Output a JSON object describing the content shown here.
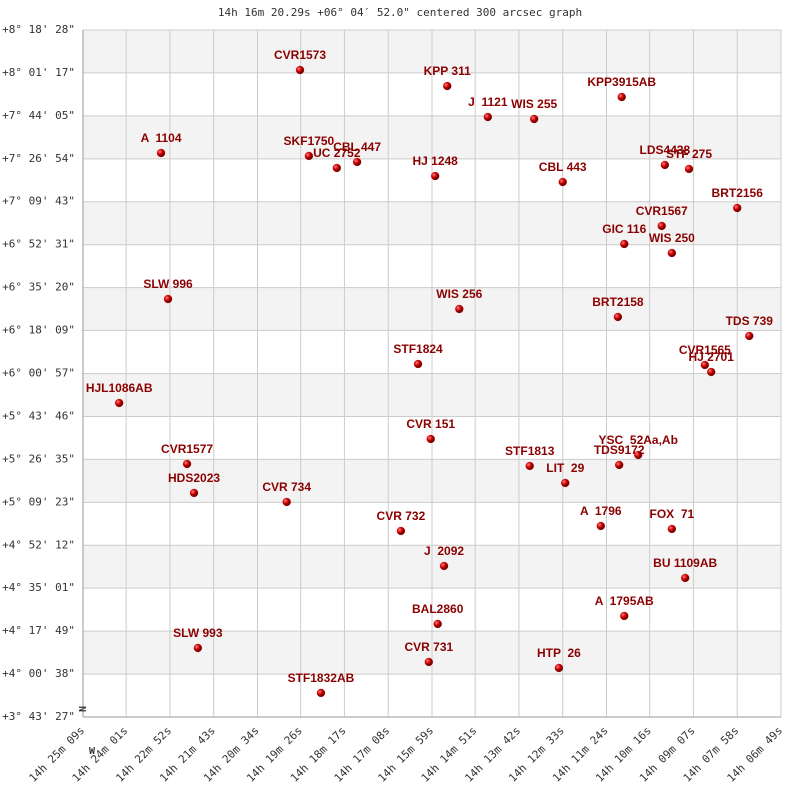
{
  "chart_data": {
    "type": "scatter",
    "title": "14h 16m 20.29s +06° 04′ 52.0\" centered 300 arcsec graph",
    "orientation_labels": [
      "N",
      "W"
    ],
    "point_labels": [
      "CVR1573",
      "KPP 311",
      "KPP3915AB",
      "J  1121",
      "WIS 255",
      "A  1104",
      "SKF1750",
      "UC 2752",
      "CBL 447",
      "HJ 1248",
      "CBL 443",
      "LDS4438",
      "STF 275",
      "BRT2156",
      "CVR1567",
      "GIC 116",
      "WIS 250",
      "SLW 996",
      "WIS 256",
      "BRT2158",
      "TDS 739",
      "STF1824",
      "CVR1565",
      "HJ 2701",
      "HJL1086AB",
      "CVR 151",
      "CVR1577",
      "STF1813",
      "YSC  52Aa,Ab",
      "TDS9172",
      "LIT  29",
      "HDS2023",
      "CVR 734",
      "A  1796",
      "FOX  71",
      "CVR 732",
      "J  2092",
      "BU 1109AB",
      "A  1795AB",
      "BAL2860",
      "SLW 993",
      "CVR 731",
      "HTP  26",
      "STF1832AB"
    ],
    "x": [
      51567,
      51335,
      51060,
      51271,
      51198,
      51786,
      51553,
      51509,
      51477,
      51354,
      51153,
      50992,
      50954,
      50878,
      50997,
      51056,
      50981,
      51775,
      51316,
      51066,
      50859,
      51381,
      50929,
      50919,
      51852,
      51361,
      51745,
      51205,
      51034,
      51064,
      51149,
      51734,
      51588,
      51093,
      50981,
      51408,
      51340,
      50960,
      51056,
      51350,
      51728,
      51364,
      51159,
      51534
    ],
    "values": [
      28947,
      28563,
      28299,
      27818,
      27770,
      26954,
      26882,
      26594,
      26738,
      26401,
      26257,
      26666,
      26570,
      25633,
      25201,
      24768,
      24552,
      23447,
      23207,
      23015,
      22559,
      21886,
      21862,
      21694,
      20950,
      20085,
      19485,
      19437,
      19701,
      19461,
      19028,
      18788,
      18572,
      17996,
      17924,
      17875,
      17035,
      16747,
      15834,
      15642,
      15065,
      14729,
      14585,
      13985
    ],
    "color": "#cc0000",
    "label_color": "#8b0000",
    "xlim": [
      51909,
      50809
    ],
    "xticks": [
      {
        "value": 51909,
        "label": "14h 25m 09s"
      },
      {
        "value": 51841,
        "label": "14h 24m 01s"
      },
      {
        "value": 51772,
        "label": "14h 22m 52s"
      },
      {
        "value": 51703,
        "label": "14h 21m 43s"
      },
      {
        "value": 51634,
        "label": "14h 20m 34s"
      },
      {
        "value": 51566,
        "label": "14h 19m 26s"
      },
      {
        "value": 51497,
        "label": "14h 18m 17s"
      },
      {
        "value": 51428,
        "label": "14h 17m 08s"
      },
      {
        "value": 51359,
        "label": "14h 15m 59s"
      },
      {
        "value": 51291,
        "label": "14h 14m 51s"
      },
      {
        "value": 51222,
        "label": "14h 13m 42s"
      },
      {
        "value": 51153,
        "label": "14h 12m 33s"
      },
      {
        "value": 51084,
        "label": "14h 11m 24s"
      },
      {
        "value": 51016,
        "label": "14h 10m 16s"
      },
      {
        "value": 50947,
        "label": "14h 09m 07s"
      },
      {
        "value": 50878,
        "label": "14h 07m 58s"
      },
      {
        "value": 50809,
        "label": "14h 06m 49s"
      }
    ],
    "ylim": [
      13407,
      29908
    ],
    "yticks": [
      {
        "value": 29908,
        "label": "+8° 18' 28\""
      },
      {
        "value": 28877,
        "label": "+8° 01' 17\""
      },
      {
        "value": 27845,
        "label": "+7° 44' 05\""
      },
      {
        "value": 26814,
        "label": "+7° 26' 54\""
      },
      {
        "value": 25783,
        "label": "+7° 09' 43\""
      },
      {
        "value": 24751,
        "label": "+6° 52' 31\""
      },
      {
        "value": 23720,
        "label": "+6° 35' 20\""
      },
      {
        "value": 22689,
        "label": "+6° 18' 09\""
      },
      {
        "value": 21657,
        "label": "+6° 00' 57\""
      },
      {
        "value": 20626,
        "label": "+5° 43' 46\""
      },
      {
        "value": 19595,
        "label": "+5° 26' 35\""
      },
      {
        "value": 18563,
        "label": "+5° 09' 23\""
      },
      {
        "value": 17532,
        "label": "+4° 52' 12\""
      },
      {
        "value": 16501,
        "label": "+4° 35' 01\""
      },
      {
        "value": 15469,
        "label": "+4° 17' 49\""
      },
      {
        "value": 14438,
        "label": "+4° 00' 38\""
      },
      {
        "value": 13407,
        "label": "+3° 43' 27\""
      }
    ],
    "grid": true
  }
}
